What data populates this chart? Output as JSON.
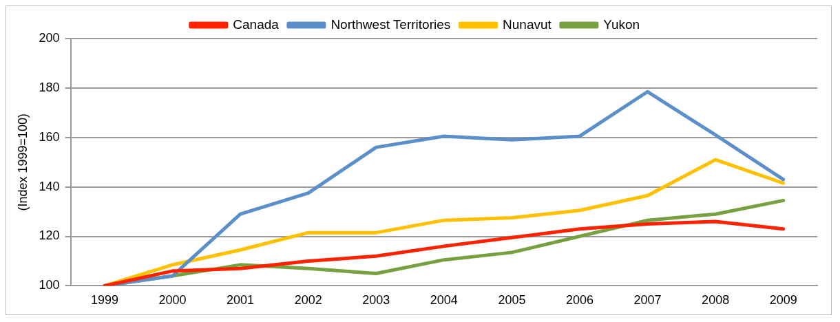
{
  "chart_data": {
    "type": "line",
    "ylabel": "(Index 1999=100)",
    "categories": [
      "1999",
      "2000",
      "2001",
      "2002",
      "2003",
      "2004",
      "2005",
      "2006",
      "2007",
      "2008",
      "2009"
    ],
    "series": [
      {
        "name": "Canada",
        "color": "#ff2200",
        "values": [
          100,
          106,
          107,
          110,
          112,
          116,
          119.5,
          123,
          125,
          126,
          123
        ]
      },
      {
        "name": "Northwest Territories",
        "color": "#5b8fc9",
        "values": [
          100,
          104,
          129,
          137.5,
          156,
          160.5,
          159,
          160.5,
          178.5,
          161,
          143
        ]
      },
      {
        "name": "Nunavut",
        "color": "#ffc000",
        "values": [
          100,
          108.5,
          114.5,
          121.5,
          121.5,
          126.5,
          127.5,
          130.5,
          136.5,
          151,
          141.5
        ]
      },
      {
        "name": "Yukon",
        "color": "#77a040",
        "values": [
          100,
          104,
          108.5,
          107,
          105,
          110.5,
          113.5,
          120,
          126.5,
          129,
          134.5
        ]
      }
    ],
    "ylim": [
      100,
      200
    ],
    "yticks": [
      100,
      120,
      140,
      160,
      180,
      200
    ],
    "grid": "y",
    "legend": "top",
    "marker": "none",
    "line_style": "solid"
  }
}
